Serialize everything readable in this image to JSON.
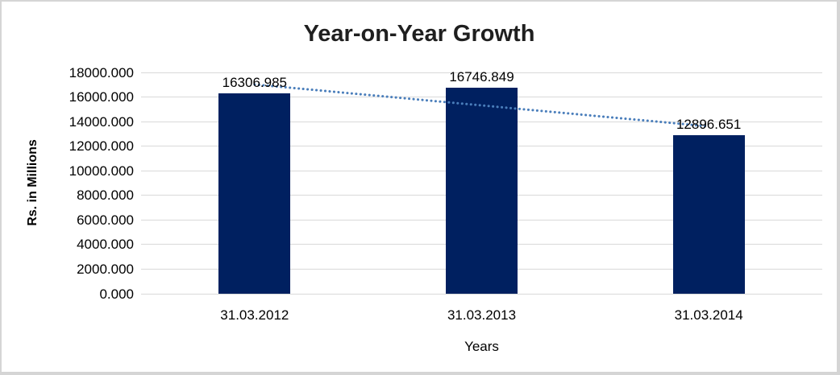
{
  "chart_data": {
    "type": "bar",
    "title": "Year-on-Year Growth",
    "xlabel": "Years",
    "ylabel": "Rs. in Millions",
    "categories": [
      "31.03.2012",
      "31.03.2013",
      "31.03.2014"
    ],
    "values": [
      16306.985,
      16746.849,
      12896.651
    ],
    "data_labels": [
      "16306.985",
      "16746.849",
      "12896.651"
    ],
    "ylim": [
      0,
      18000
    ],
    "ytick_labels": [
      "0.000",
      "2000.000",
      "4000.000",
      "6000.000",
      "8000.000",
      "10000.000",
      "12000.000",
      "14000.000",
      "16000.000",
      "18000.000"
    ],
    "grid": true,
    "legend": "none",
    "bar_color": "#002060",
    "gridline_color": "#D9D9D9",
    "trendline": {
      "type": "linear",
      "style": "dotted",
      "color": "#4A7EBB"
    }
  }
}
